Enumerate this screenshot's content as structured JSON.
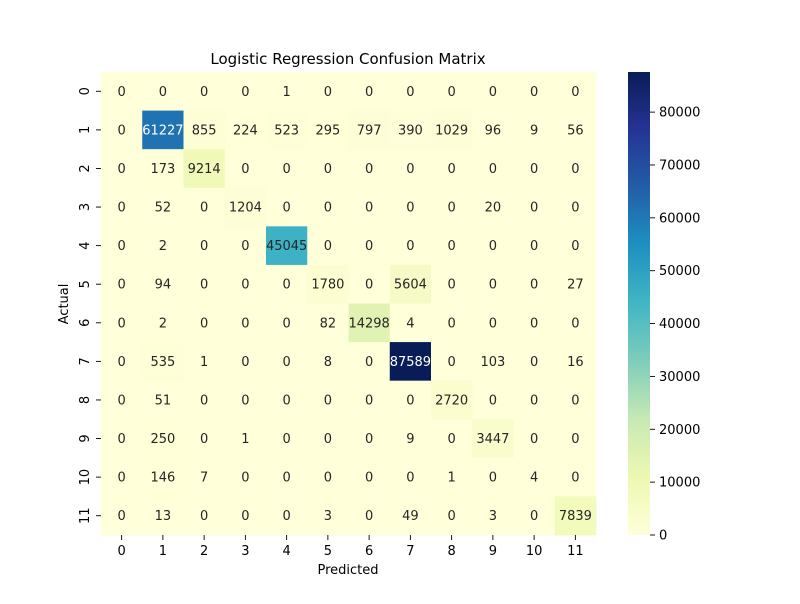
{
  "chart_data": {
    "type": "heatmap",
    "title": "Logistic Regression Confusion Matrix",
    "xlabel": "Predicted",
    "ylabel": "Actual",
    "x_categories": [
      "0",
      "1",
      "2",
      "3",
      "4",
      "5",
      "6",
      "7",
      "8",
      "9",
      "10",
      "11"
    ],
    "y_categories": [
      "0",
      "1",
      "2",
      "3",
      "4",
      "5",
      "6",
      "7",
      "8",
      "9",
      "10",
      "11"
    ],
    "matrix": [
      [
        0,
        0,
        0,
        0,
        1,
        0,
        0,
        0,
        0,
        0,
        0,
        0
      ],
      [
        0,
        61227,
        855,
        224,
        523,
        295,
        797,
        390,
        1029,
        96,
        9,
        56
      ],
      [
        0,
        173,
        9214,
        0,
        0,
        0,
        0,
        0,
        0,
        0,
        0,
        0
      ],
      [
        0,
        52,
        0,
        1204,
        0,
        0,
        0,
        0,
        0,
        20,
        0,
        0
      ],
      [
        0,
        2,
        0,
        0,
        45045,
        0,
        0,
        0,
        0,
        0,
        0,
        0
      ],
      [
        0,
        94,
        0,
        0,
        0,
        1780,
        0,
        5604,
        0,
        0,
        0,
        27
      ],
      [
        0,
        2,
        0,
        0,
        0,
        82,
        14298,
        4,
        0,
        0,
        0,
        0
      ],
      [
        0,
        535,
        1,
        0,
        0,
        8,
        0,
        87589,
        0,
        103,
        0,
        16
      ],
      [
        0,
        51,
        0,
        0,
        0,
        0,
        0,
        0,
        2720,
        0,
        0,
        0
      ],
      [
        0,
        250,
        0,
        1,
        0,
        0,
        0,
        9,
        0,
        3447,
        0,
        0
      ],
      [
        0,
        146,
        7,
        0,
        0,
        0,
        0,
        0,
        1,
        0,
        4,
        0
      ],
      [
        0,
        13,
        0,
        0,
        0,
        3,
        0,
        49,
        0,
        3,
        0,
        7839
      ]
    ],
    "colorbar": {
      "colormap": "YlGnBu",
      "vmin": 0,
      "vmax": 87589,
      "ticks": [
        0,
        10000,
        20000,
        30000,
        40000,
        50000,
        60000,
        70000,
        80000
      ],
      "tick_labels": [
        "0",
        "10000",
        "20000",
        "30000",
        "40000",
        "50000",
        "60000",
        "70000",
        "80000"
      ]
    },
    "colormap_stops": [
      "#ffffd9",
      "#edf8b1",
      "#c7e9b4",
      "#7fcdbb",
      "#41b6c4",
      "#1d91c0",
      "#225ea8",
      "#253494",
      "#081d58"
    ],
    "annotation_colors": {
      "dark": "#262626",
      "light": "#ffffff"
    }
  }
}
